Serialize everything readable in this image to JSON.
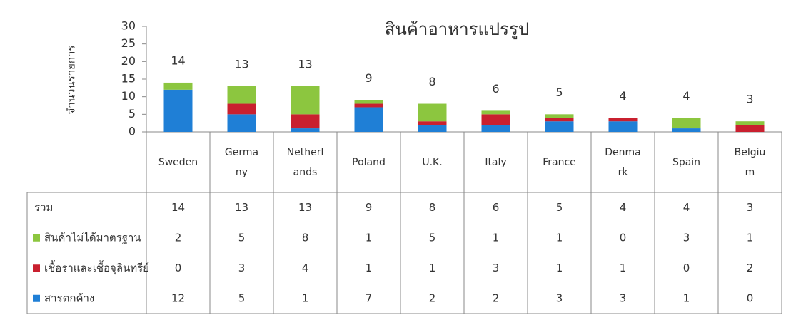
{
  "chart_data": {
    "type": "stacked_bar",
    "title": "สินค้าอาหารแปรรูป",
    "y_label": "จำนวนรายการ",
    "categories": [
      "Sweden",
      "Germany",
      "Netherlands",
      "Poland",
      "U.K.",
      "Italy",
      "France",
      "Denmark",
      "Spain",
      "Belgium"
    ],
    "series": [
      {
        "name": "สารตกค้าง",
        "color": "#1f7fd6",
        "values": [
          12,
          5,
          1,
          7,
          2,
          2,
          3,
          3,
          1,
          0
        ]
      },
      {
        "name": "เชื้อราและเชื้อจุลินทรีย์",
        "color": "#c9202f",
        "values": [
          0,
          3,
          4,
          1,
          1,
          3,
          1,
          1,
          0,
          2
        ]
      },
      {
        "name": "สินค้าไม่ได้มาตรฐาน",
        "color": "#8cc63f",
        "values": [
          2,
          5,
          8,
          1,
          5,
          1,
          1,
          0,
          3,
          1
        ]
      }
    ],
    "totals": {
      "name": "รวม",
      "values": [
        14,
        13,
        13,
        9,
        8,
        6,
        5,
        4,
        4,
        3
      ]
    },
    "ylim": [
      0,
      30
    ],
    "yticks": [
      0,
      5,
      10,
      15,
      20,
      25,
      30
    ]
  }
}
